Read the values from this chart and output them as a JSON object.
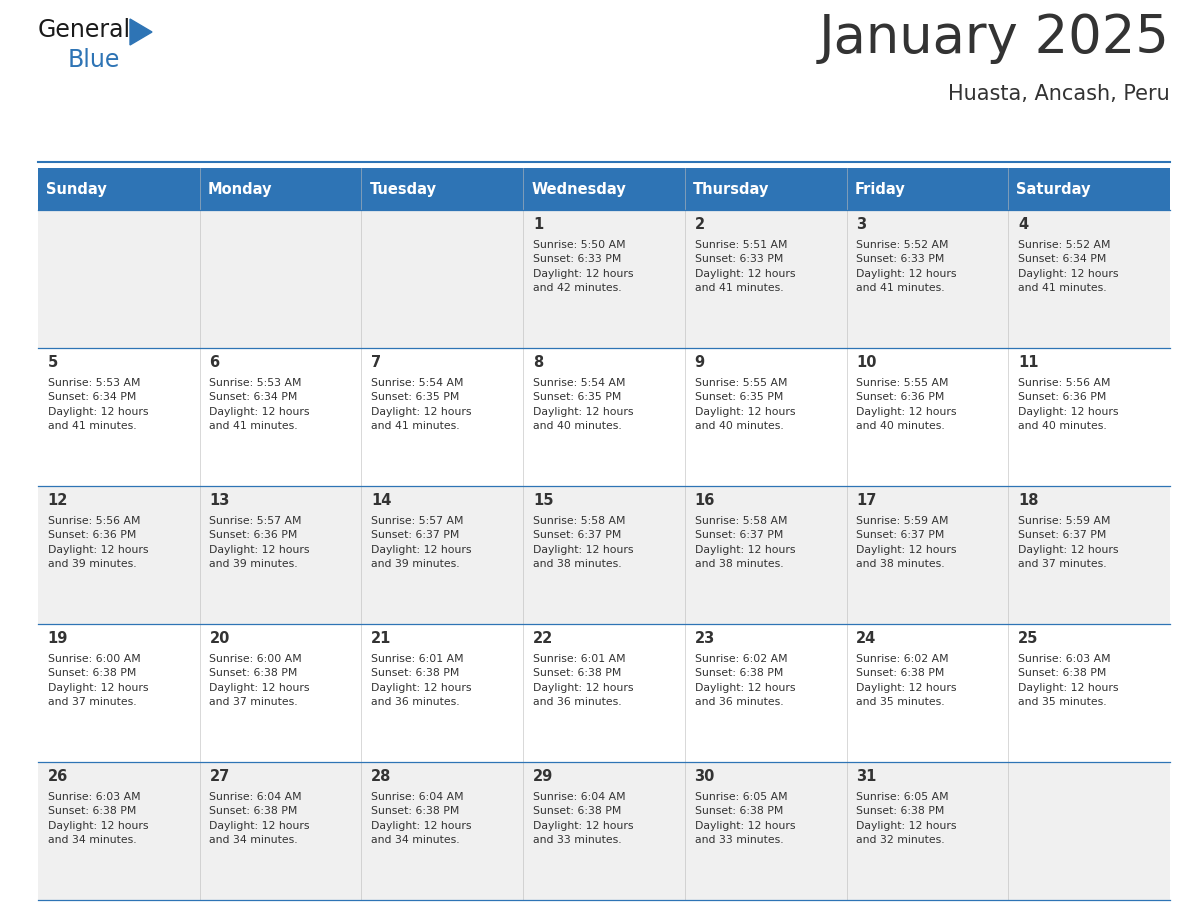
{
  "title": "January 2025",
  "subtitle": "Huasta, Ancash, Peru",
  "header_bg": "#2E74B5",
  "header_text_color": "#FFFFFF",
  "row_bg_odd": "#F0F0F0",
  "row_bg_even": "#FFFFFF",
  "border_color": "#2E74B5",
  "text_color": "#333333",
  "days_of_week": [
    "Sunday",
    "Monday",
    "Tuesday",
    "Wednesday",
    "Thursday",
    "Friday",
    "Saturday"
  ],
  "calendar_data": [
    [
      {
        "day": "",
        "info": ""
      },
      {
        "day": "",
        "info": ""
      },
      {
        "day": "",
        "info": ""
      },
      {
        "day": "1",
        "info": "Sunrise: 5:50 AM\nSunset: 6:33 PM\nDaylight: 12 hours\nand 42 minutes."
      },
      {
        "day": "2",
        "info": "Sunrise: 5:51 AM\nSunset: 6:33 PM\nDaylight: 12 hours\nand 41 minutes."
      },
      {
        "day": "3",
        "info": "Sunrise: 5:52 AM\nSunset: 6:33 PM\nDaylight: 12 hours\nand 41 minutes."
      },
      {
        "day": "4",
        "info": "Sunrise: 5:52 AM\nSunset: 6:34 PM\nDaylight: 12 hours\nand 41 minutes."
      }
    ],
    [
      {
        "day": "5",
        "info": "Sunrise: 5:53 AM\nSunset: 6:34 PM\nDaylight: 12 hours\nand 41 minutes."
      },
      {
        "day": "6",
        "info": "Sunrise: 5:53 AM\nSunset: 6:34 PM\nDaylight: 12 hours\nand 41 minutes."
      },
      {
        "day": "7",
        "info": "Sunrise: 5:54 AM\nSunset: 6:35 PM\nDaylight: 12 hours\nand 41 minutes."
      },
      {
        "day": "8",
        "info": "Sunrise: 5:54 AM\nSunset: 6:35 PM\nDaylight: 12 hours\nand 40 minutes."
      },
      {
        "day": "9",
        "info": "Sunrise: 5:55 AM\nSunset: 6:35 PM\nDaylight: 12 hours\nand 40 minutes."
      },
      {
        "day": "10",
        "info": "Sunrise: 5:55 AM\nSunset: 6:36 PM\nDaylight: 12 hours\nand 40 minutes."
      },
      {
        "day": "11",
        "info": "Sunrise: 5:56 AM\nSunset: 6:36 PM\nDaylight: 12 hours\nand 40 minutes."
      }
    ],
    [
      {
        "day": "12",
        "info": "Sunrise: 5:56 AM\nSunset: 6:36 PM\nDaylight: 12 hours\nand 39 minutes."
      },
      {
        "day": "13",
        "info": "Sunrise: 5:57 AM\nSunset: 6:36 PM\nDaylight: 12 hours\nand 39 minutes."
      },
      {
        "day": "14",
        "info": "Sunrise: 5:57 AM\nSunset: 6:37 PM\nDaylight: 12 hours\nand 39 minutes."
      },
      {
        "day": "15",
        "info": "Sunrise: 5:58 AM\nSunset: 6:37 PM\nDaylight: 12 hours\nand 38 minutes."
      },
      {
        "day": "16",
        "info": "Sunrise: 5:58 AM\nSunset: 6:37 PM\nDaylight: 12 hours\nand 38 minutes."
      },
      {
        "day": "17",
        "info": "Sunrise: 5:59 AM\nSunset: 6:37 PM\nDaylight: 12 hours\nand 38 minutes."
      },
      {
        "day": "18",
        "info": "Sunrise: 5:59 AM\nSunset: 6:37 PM\nDaylight: 12 hours\nand 37 minutes."
      }
    ],
    [
      {
        "day": "19",
        "info": "Sunrise: 6:00 AM\nSunset: 6:38 PM\nDaylight: 12 hours\nand 37 minutes."
      },
      {
        "day": "20",
        "info": "Sunrise: 6:00 AM\nSunset: 6:38 PM\nDaylight: 12 hours\nand 37 minutes."
      },
      {
        "day": "21",
        "info": "Sunrise: 6:01 AM\nSunset: 6:38 PM\nDaylight: 12 hours\nand 36 minutes."
      },
      {
        "day": "22",
        "info": "Sunrise: 6:01 AM\nSunset: 6:38 PM\nDaylight: 12 hours\nand 36 minutes."
      },
      {
        "day": "23",
        "info": "Sunrise: 6:02 AM\nSunset: 6:38 PM\nDaylight: 12 hours\nand 36 minutes."
      },
      {
        "day": "24",
        "info": "Sunrise: 6:02 AM\nSunset: 6:38 PM\nDaylight: 12 hours\nand 35 minutes."
      },
      {
        "day": "25",
        "info": "Sunrise: 6:03 AM\nSunset: 6:38 PM\nDaylight: 12 hours\nand 35 minutes."
      }
    ],
    [
      {
        "day": "26",
        "info": "Sunrise: 6:03 AM\nSunset: 6:38 PM\nDaylight: 12 hours\nand 34 minutes."
      },
      {
        "day": "27",
        "info": "Sunrise: 6:04 AM\nSunset: 6:38 PM\nDaylight: 12 hours\nand 34 minutes."
      },
      {
        "day": "28",
        "info": "Sunrise: 6:04 AM\nSunset: 6:38 PM\nDaylight: 12 hours\nand 34 minutes."
      },
      {
        "day": "29",
        "info": "Sunrise: 6:04 AM\nSunset: 6:38 PM\nDaylight: 12 hours\nand 33 minutes."
      },
      {
        "day": "30",
        "info": "Sunrise: 6:05 AM\nSunset: 6:38 PM\nDaylight: 12 hours\nand 33 minutes."
      },
      {
        "day": "31",
        "info": "Sunrise: 6:05 AM\nSunset: 6:38 PM\nDaylight: 12 hours\nand 32 minutes."
      },
      {
        "day": "",
        "info": ""
      }
    ]
  ],
  "logo_text_general": "General",
  "logo_text_blue": "Blue",
  "logo_color_general": "#1a1a1a",
  "logo_color_blue": "#2E74B5",
  "logo_triangle_color": "#2E74B5",
  "fig_width": 11.88,
  "fig_height": 9.18,
  "dpi": 100
}
